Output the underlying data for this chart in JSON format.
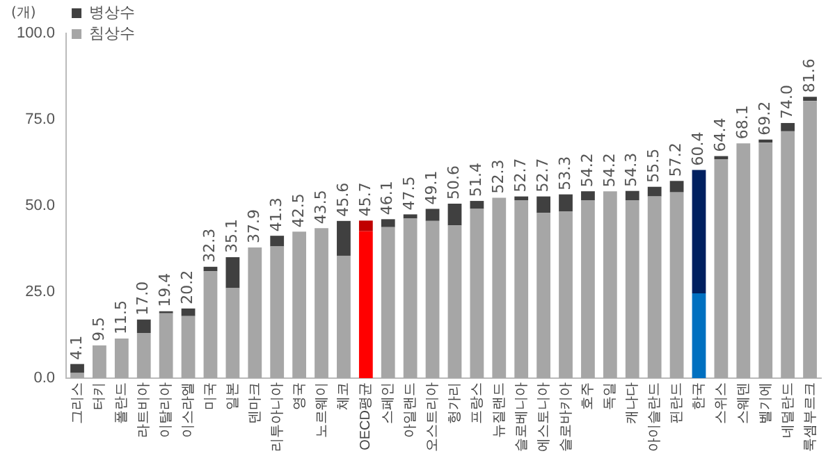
{
  "chart_data": {
    "type": "bar",
    "stacked": true,
    "ylabel": "(개)",
    "categories": [
      "그리스",
      "터키",
      "폴란드",
      "라트비아",
      "이탈리아",
      "이스라엘",
      "미국",
      "일본",
      "덴마크",
      "리투아니아",
      "영국",
      "노르웨이",
      "체코",
      "OECD평균",
      "스페인",
      "아일랜드",
      "오스트리아",
      "헝가리",
      "프랑스",
      "뉴질랜드",
      "슬로베니아",
      "에스토니아",
      "슬로바키아",
      "호주",
      "독일",
      "캐나다",
      "아이슬란드",
      "핀란드",
      "한국",
      "스위스",
      "스웨덴",
      "벨기에",
      "네덜란드",
      "룩셈부르크"
    ],
    "series": [
      {
        "name": "침상수",
        "color": "#a6a6a6",
        "colors": [
          "#a6a6a6",
          "#a6a6a6",
          "#a6a6a6",
          "#a6a6a6",
          "#a6a6a6",
          "#a6a6a6",
          "#a6a6a6",
          "#a6a6a6",
          "#a6a6a6",
          "#a6a6a6",
          "#a6a6a6",
          "#a6a6a6",
          "#a6a6a6",
          "#ff0000",
          "#a6a6a6",
          "#a6a6a6",
          "#a6a6a6",
          "#a6a6a6",
          "#a6a6a6",
          "#a6a6a6",
          "#a6a6a6",
          "#a6a6a6",
          "#a6a6a6",
          "#a6a6a6",
          "#a6a6a6",
          "#a6a6a6",
          "#a6a6a6",
          "#a6a6a6",
          "#0070c0",
          "#a6a6a6",
          "#a6a6a6",
          "#a6a6a6",
          "#a6a6a6",
          "#a6a6a6"
        ],
        "values": [
          1.5,
          9.5,
          11.5,
          13.1,
          18.8,
          18.0,
          31.0,
          26.1,
          37.9,
          38.2,
          42.5,
          43.5,
          35.5,
          42.6,
          43.8,
          46.3,
          45.6,
          44.3,
          49.1,
          52.3,
          51.6,
          47.9,
          48.3,
          51.6,
          54.2,
          51.6,
          52.7,
          53.9,
          24.6,
          63.5,
          68.1,
          68.3,
          71.6,
          80.4
        ]
      },
      {
        "name": "병상수",
        "color": "#404040",
        "colors": [
          "#404040",
          "#404040",
          "#404040",
          "#404040",
          "#404040",
          "#404040",
          "#404040",
          "#404040",
          "#404040",
          "#404040",
          "#404040",
          "#404040",
          "#404040",
          "#c00000",
          "#404040",
          "#404040",
          "#404040",
          "#404040",
          "#404040",
          "#404040",
          "#404040",
          "#404040",
          "#404040",
          "#404040",
          "#404040",
          "#404040",
          "#404040",
          "#404040",
          "#002060",
          "#404040",
          "#404040",
          "#404040",
          "#404040",
          "#404040"
        ],
        "values": [
          2.6,
          0,
          0,
          3.9,
          0.6,
          2.2,
          1.3,
          9.0,
          0,
          3.1,
          0,
          0,
          10.1,
          3.1,
          2.3,
          1.2,
          3.5,
          6.3,
          2.3,
          0,
          1.1,
          4.8,
          5.0,
          2.6,
          0,
          2.7,
          2.8,
          3.3,
          35.8,
          0.9,
          0,
          0.9,
          2.4,
          1.2
        ]
      }
    ],
    "totals": [
      "4.1",
      "9.5",
      "11.5",
      "17.0",
      "19.4",
      "20.2",
      "32.3",
      "35.1",
      "37.9",
      "41.3",
      "42.5",
      "43.5",
      "45.6",
      "45.7",
      "46.1",
      "47.5",
      "49.1",
      "50.6",
      "51.4",
      "52.3",
      "52.7",
      "52.7",
      "53.3",
      "54.2",
      "54.2",
      "54.3",
      "55.5",
      "57.2",
      "60.4",
      "64.4",
      "68.1",
      "69.2",
      "74.0",
      "81.6"
    ],
    "ylim": [
      0,
      100
    ],
    "yticks": [
      {
        "value": 0,
        "label": "0.0"
      },
      {
        "value": 25,
        "label": "25.0"
      },
      {
        "value": 50,
        "label": "50.0"
      },
      {
        "value": 75,
        "label": "75.0"
      },
      {
        "value": 100,
        "label": "100.0"
      }
    ],
    "grid": false,
    "legend": "top left"
  }
}
